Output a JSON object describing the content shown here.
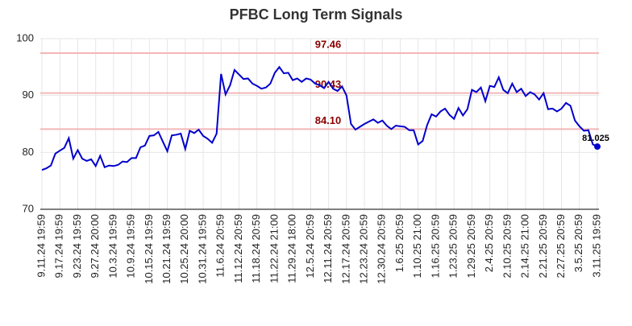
{
  "chart_data": {
    "type": "line",
    "title": "PFBC Long Term Signals",
    "categories": [
      "9.11.24 19:59",
      null,
      null,
      null,
      "9.17.24 19:59",
      null,
      null,
      null,
      "9.23.24 19:59",
      null,
      null,
      null,
      "9.27.24 20:00",
      null,
      null,
      null,
      "10.3.24 19:59",
      null,
      null,
      null,
      "10.9.24 19:59",
      null,
      null,
      null,
      "10.15.24 19:59",
      null,
      null,
      null,
      "10.21.24 19:59",
      null,
      null,
      null,
      "10.25.24 20:00",
      null,
      null,
      null,
      "10.31.24 19:59",
      null,
      null,
      null,
      "11.6.24 20:59",
      null,
      null,
      null,
      "11.12.24 20:59",
      null,
      null,
      null,
      "11.18.24 20:59",
      null,
      null,
      null,
      "11.22.24 21:00",
      null,
      null,
      null,
      "11.29.24 18:00",
      null,
      null,
      null,
      "12.5.24 20:59",
      null,
      null,
      null,
      "12.11.24 20:59",
      null,
      null,
      null,
      "12.17.24 20:59",
      null,
      null,
      null,
      "12.23.24 20:59",
      null,
      null,
      null,
      "12.30.24 20:59",
      null,
      null,
      null,
      "1.6.25 20:59",
      null,
      null,
      null,
      "1.10.25 21:00",
      null,
      null,
      null,
      "1.16.25 20:59",
      null,
      null,
      null,
      "1.23.25 20:59",
      null,
      null,
      null,
      "1.29.25 20:59",
      null,
      null,
      null,
      "2.4.25 20:59",
      null,
      null,
      null,
      "2.10.25 20:59",
      null,
      null,
      null,
      "2.14.25 21:00",
      null,
      null,
      null,
      "2.21.25 20:59",
      null,
      null,
      null,
      "2.27.25 20:59",
      null,
      null,
      null,
      "3.5.25 20:59",
      null,
      null,
      null,
      "3.11.25 19:59"
    ],
    "values": [
      76.9,
      77.2,
      77.7,
      79.8,
      80.3,
      80.8,
      82.5,
      78.9,
      80.4,
      78.9,
      78.5,
      78.8,
      77.6,
      79.4,
      77.4,
      77.7,
      77.6,
      77.8,
      78.4,
      78.3,
      79.0,
      79.0,
      80.9,
      81.2,
      82.9,
      83.0,
      83.6,
      81.9,
      80.2,
      83.0,
      83.1,
      83.3,
      80.6,
      83.8,
      83.4,
      84.0,
      82.9,
      82.4,
      81.7,
      83.3,
      93.8,
      90.2,
      91.8,
      94.5,
      93.7,
      92.9,
      93.0,
      92.1,
      91.7,
      91.2,
      91.4,
      92.1,
      94.0,
      95.0,
      93.9,
      94.0,
      92.7,
      93.0,
      92.4,
      93.0,
      92.8,
      92.1,
      91.8,
      91.3,
      92.4,
      91.2,
      90.8,
      91.6,
      90.0,
      85.0,
      84.0,
      84.5,
      85.0,
      85.4,
      85.8,
      85.2,
      85.6,
      84.7,
      84.1,
      84.7,
      84.6,
      84.5,
      83.9,
      83.9,
      81.4,
      82.0,
      84.8,
      86.7,
      86.3,
      87.2,
      87.7,
      86.6,
      85.9,
      87.8,
      86.5,
      87.6,
      91.0,
      90.6,
      91.4,
      89.0,
      91.7,
      91.5,
      93.2,
      91.0,
      90.4,
      92.1,
      90.6,
      91.2,
      89.9,
      90.6,
      90.2,
      89.3,
      90.4,
      87.6,
      87.7,
      87.2,
      87.7,
      88.7,
      88.2,
      85.6,
      84.6,
      83.8,
      83.9,
      81.4,
      81.025
    ],
    "color": "#0000cc",
    "ylim": [
      70,
      100
    ],
    "yticks": [
      70,
      80,
      90,
      100
    ],
    "grid": true,
    "hlines": [
      97.46,
      90.43,
      {
        "value": 84.1,
        "label": "84.10"
      }
    ],
    "hline_color": "#f4b6b6",
    "hline_label_color": "#8b0000"
  }
}
